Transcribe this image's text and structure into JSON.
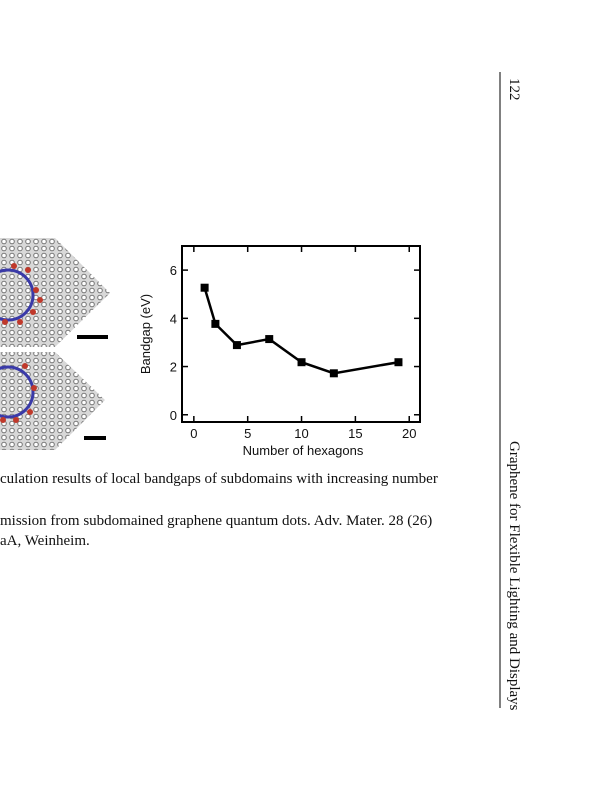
{
  "page_number": "122",
  "running_title": "Graphene for Flexible Lighting and Displays",
  "caption_lines": [
    "culation results of local bandgaps of subdomains with increasing number",
    "mission from subdomained graphene quantum dots. Adv. Mater. 28 (26)",
    "aA, Weinheim."
  ],
  "chart_data": {
    "type": "line",
    "x_label": "Number of hexagons",
    "y_label": "Bandgap (eV)",
    "x": [
      1,
      2,
      4,
      7,
      10,
      13,
      19
    ],
    "values": [
      5.27,
      3.77,
      2.89,
      3.14,
      2.18,
      1.72,
      2.18
    ],
    "color": "#000000",
    "xlim": [
      -1.1,
      21
    ],
    "ylim": [
      -0.3,
      7
    ],
    "xticks": [
      0,
      5,
      10,
      15,
      20
    ],
    "yticks": [
      0,
      2,
      4,
      6
    ]
  }
}
